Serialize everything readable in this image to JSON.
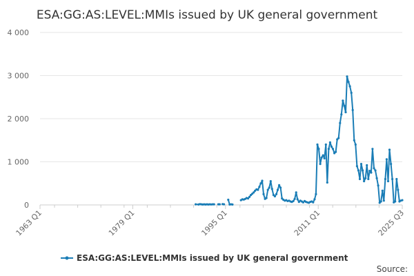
{
  "chart_data": {
    "type": "line",
    "title": "ESA:GG:AS:LEVEL:MMIs issued by UK general government",
    "xlabel": "",
    "ylabel": "",
    "x_range": [
      1963.0,
      2025.5
    ],
    "ylim": [
      0,
      4000
    ],
    "y_ticks": [
      {
        "value": 0,
        "label": "0"
      },
      {
        "value": 1000,
        "label": "1 000"
      },
      {
        "value": 2000,
        "label": "2 000"
      },
      {
        "value": 3000,
        "label": "3 000"
      },
      {
        "value": 4000,
        "label": "4 000"
      }
    ],
    "x_ticks": [
      {
        "value": 1963.0,
        "label": "1963 Q1"
      },
      {
        "value": 1979.0,
        "label": "1979 Q1"
      },
      {
        "value": 1995.0,
        "label": "1995 Q1"
      },
      {
        "value": 2011.0,
        "label": "2011 Q1"
      },
      {
        "value": 2025.5,
        "label": "2025 Q3"
      }
    ],
    "grid": "horizontal",
    "legend_position": "bottom",
    "series": [
      {
        "name": "ESA:GG:AS:LEVEL:MMIs issued by UK general government",
        "color": "#1a7db6",
        "segments": [
          [
            [
              1990.5,
              15
            ],
            [
              1991.0,
              10
            ],
            [
              1991.25,
              20
            ],
            [
              1991.5,
              15
            ],
            [
              1991.75,
              10
            ],
            [
              1992.0,
              15
            ],
            [
              1992.25,
              10
            ],
            [
              1992.5,
              15
            ],
            [
              1992.75,
              10
            ],
            [
              1993.0,
              15
            ],
            [
              1993.25,
              12
            ],
            [
              1993.5,
              15
            ],
            [
              1993.75,
              15
            ]
          ],
          [
            [
              1994.5,
              15
            ],
            [
              1994.75,
              15
            ]
          ],
          [
            [
              1995.25,
              20
            ],
            [
              1995.5,
              15
            ]
          ],
          [
            [
              1996.25,
              120
            ],
            [
              1996.5,
              10
            ],
            [
              1996.75,
              15
            ],
            [
              1997.0,
              10
            ]
          ],
          [
            [
              1998.5,
              110
            ],
            [
              1998.75,
              130
            ],
            [
              1999.0,
              125
            ],
            [
              1999.25,
              140
            ],
            [
              1999.5,
              160
            ],
            [
              1999.75,
              150
            ],
            [
              2000.0,
              185
            ],
            [
              2000.25,
              230
            ],
            [
              2000.5,
              260
            ],
            [
              2000.75,
              290
            ],
            [
              2001.0,
              330
            ],
            [
              2001.25,
              360
            ],
            [
              2001.5,
              350
            ],
            [
              2001.75,
              420
            ],
            [
              2002.0,
              500
            ],
            [
              2002.25,
              560
            ],
            [
              2002.5,
              250
            ],
            [
              2002.75,
              140
            ],
            [
              2003.0,
              160
            ],
            [
              2003.25,
              350
            ],
            [
              2003.5,
              400
            ],
            [
              2003.75,
              550
            ],
            [
              2004.0,
              370
            ],
            [
              2004.25,
              230
            ],
            [
              2004.5,
              200
            ],
            [
              2004.75,
              250
            ],
            [
              2005.0,
              350
            ],
            [
              2005.25,
              460
            ],
            [
              2005.5,
              400
            ],
            [
              2005.75,
              150
            ],
            [
              2006.0,
              120
            ],
            [
              2006.25,
              100
            ],
            [
              2006.5,
              110
            ],
            [
              2006.75,
              90
            ],
            [
              2007.0,
              100
            ],
            [
              2007.25,
              80
            ],
            [
              2007.5,
              70
            ],
            [
              2007.75,
              90
            ],
            [
              2008.0,
              140
            ],
            [
              2008.25,
              290
            ],
            [
              2008.5,
              130
            ],
            [
              2008.75,
              70
            ],
            [
              2009.0,
              100
            ],
            [
              2009.25,
              80
            ],
            [
              2009.5,
              60
            ],
            [
              2009.75,
              90
            ],
            [
              2010.0,
              70
            ],
            [
              2010.25,
              60
            ],
            [
              2010.5,
              50
            ],
            [
              2010.75,
              70
            ],
            [
              2011.0,
              80
            ],
            [
              2011.25,
              60
            ],
            [
              2011.5,
              130
            ],
            [
              2011.75,
              250
            ],
            [
              2012.0,
              1400
            ],
            [
              2012.25,
              1300
            ],
            [
              2012.5,
              950
            ],
            [
              2012.75,
              1100
            ],
            [
              2013.0,
              1150
            ],
            [
              2013.25,
              1080
            ],
            [
              2013.5,
              1400
            ],
            [
              2013.75,
              520
            ],
            [
              2014.0,
              1300
            ],
            [
              2014.25,
              1450
            ],
            [
              2014.5,
              1350
            ],
            [
              2014.75,
              1300
            ],
            [
              2015.0,
              1200
            ],
            [
              2015.25,
              1230
            ],
            [
              2015.5,
              1520
            ],
            [
              2015.75,
              1550
            ],
            [
              2016.0,
              1900
            ],
            [
              2016.25,
              2100
            ],
            [
              2016.5,
              2420
            ],
            [
              2016.75,
              2300
            ],
            [
              2017.0,
              2150
            ],
            [
              2017.25,
              2980
            ],
            [
              2017.5,
              2850
            ],
            [
              2017.75,
              2750
            ],
            [
              2018.0,
              2600
            ],
            [
              2018.25,
              2200
            ],
            [
              2018.5,
              1500
            ],
            [
              2018.75,
              1400
            ],
            [
              2019.0,
              900
            ],
            [
              2019.25,
              800
            ],
            [
              2019.5,
              600
            ],
            [
              2019.75,
              950
            ],
            [
              2020.0,
              800
            ],
            [
              2020.25,
              550
            ],
            [
              2020.5,
              620
            ],
            [
              2020.75,
              920
            ],
            [
              2021.0,
              600
            ],
            [
              2021.25,
              790
            ],
            [
              2021.5,
              750
            ],
            [
              2021.75,
              1300
            ],
            [
              2022.0,
              850
            ],
            [
              2022.25,
              800
            ],
            [
              2022.5,
              620
            ],
            [
              2022.75,
              450
            ],
            [
              2023.0,
              50
            ],
            [
              2023.25,
              80
            ],
            [
              2023.5,
              330
            ],
            [
              2023.75,
              100
            ],
            [
              2024.0,
              600
            ],
            [
              2024.25,
              1060
            ],
            [
              2024.5,
              550
            ],
            [
              2024.75,
              1280
            ],
            [
              2025.0,
              950
            ],
            [
              2025.25,
              600
            ],
            [
              2025.5,
              60
            ],
            [
              2025.75,
              80
            ],
            [
              2026.0,
              600
            ],
            [
              2026.25,
              350
            ],
            [
              2026.5,
              80
            ],
            [
              2026.75,
              100
            ],
            [
              2027.0,
              110
            ]
          ]
        ]
      }
    ],
    "legend_label": "ESA:GG:AS:LEVEL:MMIs issued by UK general government",
    "source_label": "Source:"
  }
}
